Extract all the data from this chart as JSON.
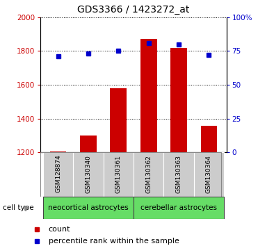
{
  "title": "GDS3366 / 1423272_at",
  "samples": [
    "GSM128874",
    "GSM130340",
    "GSM130361",
    "GSM130362",
    "GSM130363",
    "GSM130364"
  ],
  "counts": [
    1205,
    1300,
    1580,
    1870,
    1820,
    1360
  ],
  "percentiles": [
    71,
    73,
    75,
    81,
    80,
    72
  ],
  "ylim_left": [
    1200,
    2000
  ],
  "ylim_right": [
    0,
    100
  ],
  "yticks_left": [
    1200,
    1400,
    1600,
    1800,
    2000
  ],
  "yticks_right": [
    0,
    25,
    50,
    75,
    100
  ],
  "bar_color": "#cc0000",
  "percentile_color": "#0000cc",
  "group1_label": "neocortical astrocytes",
  "group2_label": "cerebellar astrocytes",
  "group_bg_color": "#66dd66",
  "sample_bg_color": "#cccccc",
  "legend_count_label": "count",
  "legend_pct_label": "percentile rank within the sample",
  "cell_type_label": "cell type",
  "bar_width": 0.55,
  "title_fontsize": 10,
  "tick_fontsize": 7.5,
  "group_fontsize": 7.5,
  "legend_fontsize": 8
}
